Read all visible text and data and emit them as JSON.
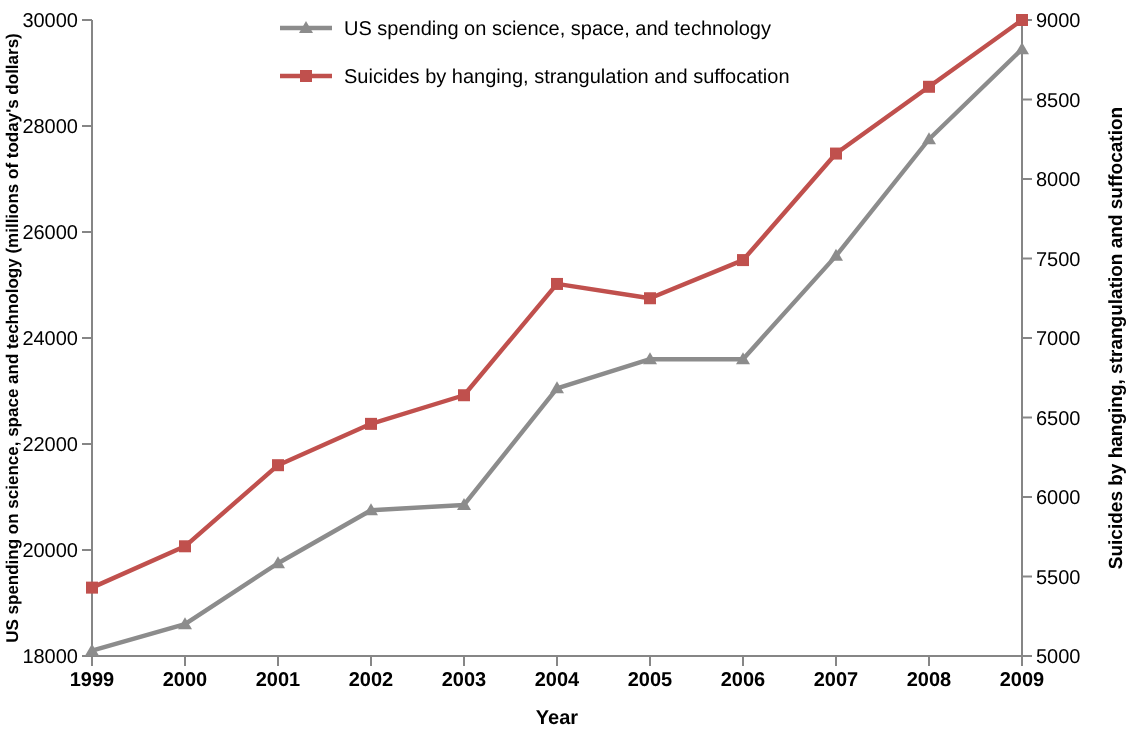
{
  "chart_data": {
    "type": "line",
    "xlabel": "Year",
    "ylabel": "US spending on science, space and technology (millions of today's dollars)",
    "y2label": "Suicides by hanging, strangulation and suffocation",
    "x": [
      1999,
      2000,
      2001,
      2002,
      2003,
      2004,
      2005,
      2006,
      2007,
      2008,
      2009
    ],
    "xlim": [
      1999,
      2009
    ],
    "xticks": [
      1999,
      2000,
      2001,
      2002,
      2003,
      2004,
      2005,
      2006,
      2007,
      2008,
      2009
    ],
    "ylim": [
      18000,
      30000
    ],
    "yticks": [
      18000,
      20000,
      22000,
      24000,
      26000,
      28000,
      30000
    ],
    "y2lim": [
      5000,
      9000
    ],
    "y2ticks": [
      5000,
      5500,
      6000,
      6500,
      7000,
      7500,
      8000,
      8500,
      9000
    ],
    "legend": "top",
    "grid": false,
    "series": [
      {
        "name": "US spending on science, space, and technology",
        "color": "#8c8c8c",
        "marker": "triangle",
        "values": [
          18100,
          18600,
          19750,
          20750,
          20850,
          23050,
          23600,
          23600,
          25550,
          27750,
          29450
        ]
      },
      {
        "name": "Suicides by hanging, strangulation and suffocation",
        "color": "#c0504d",
        "marker": "square",
        "axis": "y2",
        "values": [
          5430,
          5690,
          6200,
          6460,
          6640,
          7340,
          7250,
          7490,
          8160,
          8580,
          9000
        ]
      }
    ]
  }
}
